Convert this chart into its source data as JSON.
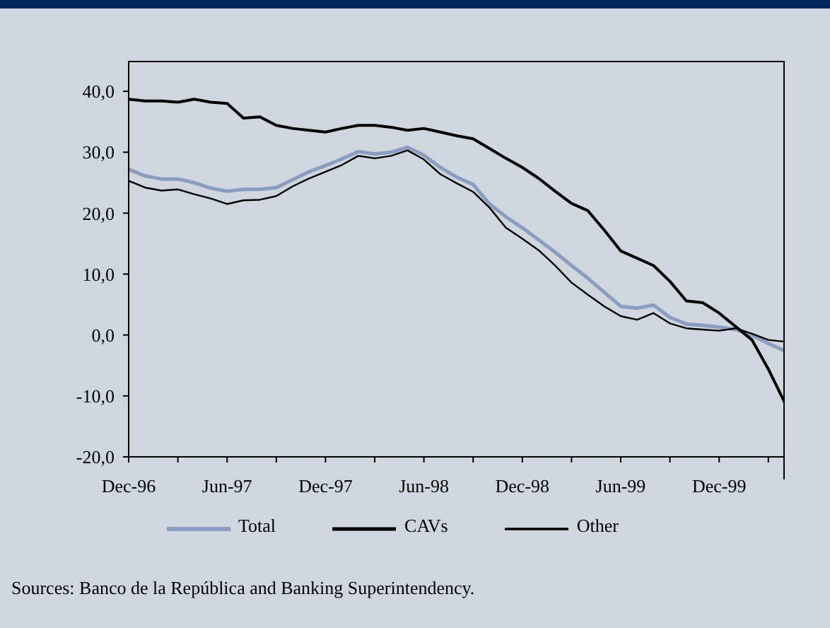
{
  "chart_data": {
    "type": "line",
    "x": [
      "1996-12",
      "1997-01",
      "1997-02",
      "1997-03",
      "1997-04",
      "1997-05",
      "1997-06",
      "1997-07",
      "1997-08",
      "1997-09",
      "1997-10",
      "1997-11",
      "1997-12",
      "1998-01",
      "1998-02",
      "1998-03",
      "1998-04",
      "1998-05",
      "1998-06",
      "1998-07",
      "1998-08",
      "1998-09",
      "1998-10",
      "1998-11",
      "1998-12",
      "1999-01",
      "1999-02",
      "1999-03",
      "1999-04",
      "1999-05",
      "1999-06",
      "1999-07",
      "1999-08",
      "1999-09",
      "1999-10",
      "1999-11",
      "1999-12",
      "2000-01",
      "2000-02",
      "2000-03",
      "2000-04"
    ],
    "series": [
      {
        "name": "Total",
        "color": "#8a9cc0",
        "values": [
          27.2,
          26.1,
          25.6,
          25.6,
          25.0,
          24.1,
          23.6,
          23.9,
          23.9,
          24.2,
          25.5,
          26.8,
          27.8,
          28.9,
          30.1,
          29.7,
          30.0,
          30.8,
          29.5,
          27.5,
          25.9,
          24.7,
          21.5,
          19.4,
          17.6,
          15.6,
          13.6,
          11.4,
          9.3,
          7.0,
          4.7,
          4.4,
          4.9,
          2.9,
          1.8,
          1.6,
          1.3,
          0.9,
          0.0,
          -1.4,
          -2.6
        ]
      },
      {
        "name": "CAVs",
        "color": "#000000",
        "values": [
          38.7,
          38.4,
          38.4,
          38.2,
          38.7,
          38.2,
          38.0,
          35.6,
          35.8,
          34.4,
          33.9,
          33.6,
          33.3,
          33.9,
          34.4,
          34.4,
          34.1,
          33.6,
          33.9,
          33.3,
          32.7,
          32.2,
          30.6,
          29.0,
          27.5,
          25.7,
          23.6,
          21.6,
          20.4,
          17.2,
          13.8,
          12.6,
          11.4,
          8.8,
          5.6,
          5.3,
          3.6,
          1.4,
          -0.8,
          -5.6,
          -11.1
        ]
      },
      {
        "name": "Other",
        "color": "#000000",
        "values": [
          25.3,
          24.2,
          23.7,
          23.9,
          23.1,
          22.4,
          21.5,
          22.1,
          22.2,
          22.8,
          24.4,
          25.7,
          26.8,
          27.9,
          29.4,
          29.0,
          29.4,
          30.3,
          28.8,
          26.4,
          24.9,
          23.5,
          20.9,
          17.6,
          15.8,
          13.9,
          11.4,
          8.6,
          6.6,
          4.7,
          3.1,
          2.5,
          3.6,
          1.9,
          1.1,
          0.9,
          0.7,
          1.1,
          0.2,
          -0.8,
          -1.1
        ]
      }
    ],
    "xlim": [
      "1996-12",
      "2000-04"
    ],
    "xticks": [
      {
        "value": "1996-12",
        "label": "Dec-96"
      },
      {
        "value": "1997-03",
        "label": null
      },
      {
        "value": "1997-06",
        "label": "Jun-97"
      },
      {
        "value": "1997-09",
        "label": null
      },
      {
        "value": "1997-12",
        "label": "Dec-97"
      },
      {
        "value": "1998-03",
        "label": null
      },
      {
        "value": "1998-06",
        "label": "Jun-98"
      },
      {
        "value": "1998-09",
        "label": null
      },
      {
        "value": "1998-12",
        "label": "Dec-98"
      },
      {
        "value": "1999-03",
        "label": null
      },
      {
        "value": "1999-06",
        "label": "Jun-99"
      },
      {
        "value": "1999-09",
        "label": null
      },
      {
        "value": "1999-12",
        "label": "Dec-99"
      },
      {
        "value": "2000-03",
        "label": null
      }
    ],
    "ylim": [
      -20,
      45
    ],
    "yticks": [
      {
        "value": -20,
        "label": "-20,0"
      },
      {
        "value": -10,
        "label": "-10,0"
      },
      {
        "value": 0,
        "label": "0,0"
      },
      {
        "value": 10,
        "label": "10,0"
      },
      {
        "value": 20,
        "label": "20,0"
      },
      {
        "value": 30,
        "label": "30,0"
      },
      {
        "value": 40,
        "label": "40,0"
      }
    ],
    "grid": false,
    "legend": "bottom",
    "marker": "none",
    "line_style": "solid",
    "annotations": [
      "Sources: Banco de la República and Banking Superintendency."
    ]
  }
}
